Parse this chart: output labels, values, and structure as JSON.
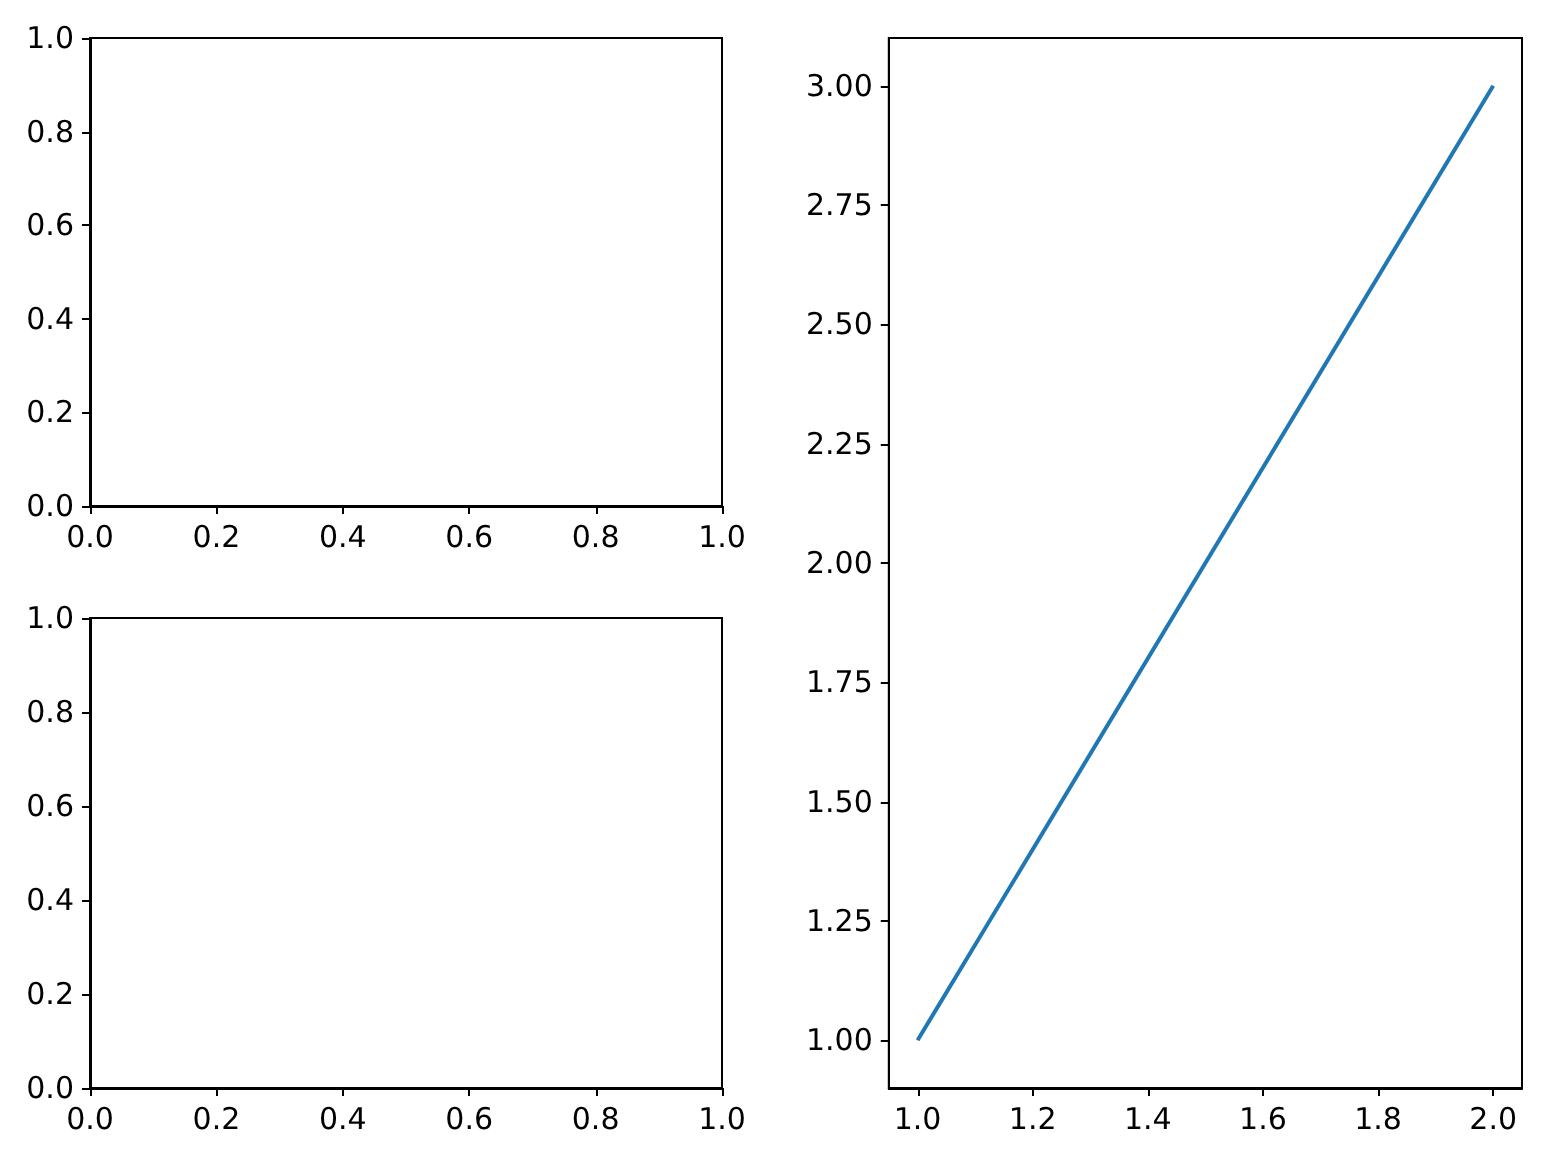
{
  "chart_data": [
    {
      "type": "line",
      "xlim": [
        0,
        1
      ],
      "ylim": [
        0,
        1
      ],
      "xticks": [
        {
          "value": 0,
          "label": "0.0"
        },
        {
          "value": 0.2,
          "label": "0.2"
        },
        {
          "value": 0.4,
          "label": "0.4"
        },
        {
          "value": 0.6,
          "label": "0.6"
        },
        {
          "value": 0.8,
          "label": "0.8"
        },
        {
          "value": 1,
          "label": "1.0"
        }
      ],
      "yticks": [
        {
          "value": 0,
          "label": "0.0"
        },
        {
          "value": 0.2,
          "label": "0.2"
        },
        {
          "value": 0.4,
          "label": "0.4"
        },
        {
          "value": 0.6,
          "label": "0.6"
        },
        {
          "value": 0.8,
          "label": "0.8"
        },
        {
          "value": 1,
          "label": "1.0"
        }
      ]
    },
    {
      "type": "line",
      "xlim": [
        0,
        1
      ],
      "ylim": [
        0,
        1
      ],
      "xticks": [
        {
          "value": 0,
          "label": "0.0"
        },
        {
          "value": 0.2,
          "label": "0.2"
        },
        {
          "value": 0.4,
          "label": "0.4"
        },
        {
          "value": 0.6,
          "label": "0.6"
        },
        {
          "value": 0.8,
          "label": "0.8"
        },
        {
          "value": 1,
          "label": "1.0"
        }
      ],
      "yticks": [
        {
          "value": 0,
          "label": "0.0"
        },
        {
          "value": 0.2,
          "label": "0.2"
        },
        {
          "value": 0.4,
          "label": "0.4"
        },
        {
          "value": 0.6,
          "label": "0.6"
        },
        {
          "value": 0.8,
          "label": "0.8"
        },
        {
          "value": 1,
          "label": "1.0"
        }
      ]
    },
    {
      "type": "line",
      "x": [
        1,
        2
      ],
      "values": [
        1,
        3
      ],
      "color": "#1f77b4",
      "xlim": [
        0.95,
        2.05
      ],
      "ylim": [
        0.9,
        3.1
      ],
      "xticks": [
        {
          "value": 1,
          "label": "1.0"
        },
        {
          "value": 1.2,
          "label": "1.2"
        },
        {
          "value": 1.4,
          "label": "1.4"
        },
        {
          "value": 1.6,
          "label": "1.6"
        },
        {
          "value": 1.8,
          "label": "1.8"
        },
        {
          "value": 2,
          "label": "2.0"
        }
      ],
      "yticks": [
        {
          "value": 1,
          "label": "1.00"
        },
        {
          "value": 1.25,
          "label": "1.25"
        },
        {
          "value": 1.5,
          "label": "1.50"
        },
        {
          "value": 1.75,
          "label": "1.75"
        },
        {
          "value": 2,
          "label": "2.00"
        },
        {
          "value": 2.25,
          "label": "2.25"
        },
        {
          "value": 2.5,
          "label": "2.50"
        },
        {
          "value": 2.75,
          "label": "2.75"
        },
        {
          "value": 3,
          "label": "3.00"
        }
      ]
    }
  ]
}
